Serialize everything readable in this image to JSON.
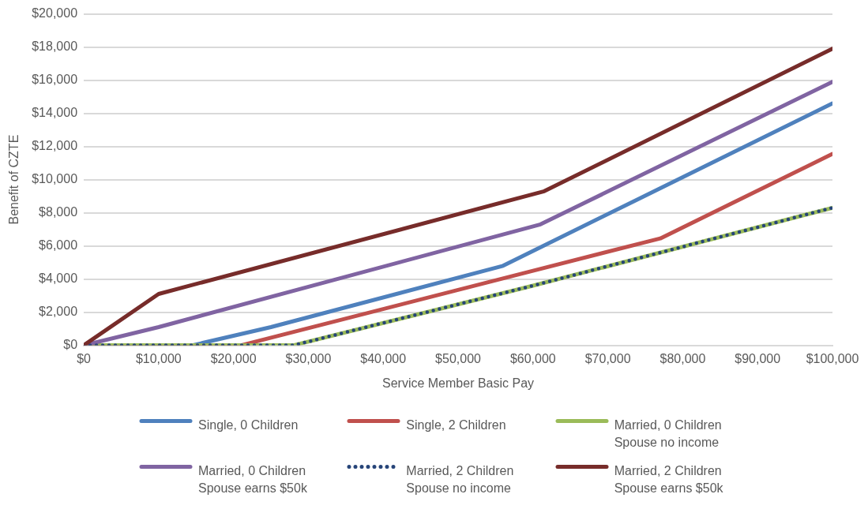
{
  "chart_data": {
    "type": "line",
    "xlabel": "Service Member Basic Pay",
    "ylabel": "Benefit of CZTE",
    "xlim": [
      0,
      100000
    ],
    "ylim": [
      0,
      20000
    ],
    "xticks": [
      {
        "value": 0,
        "label": "$0"
      },
      {
        "value": 10000,
        "label": "$10,000"
      },
      {
        "value": 20000,
        "label": "$20,000"
      },
      {
        "value": 30000,
        "label": "$30,000"
      },
      {
        "value": 40000,
        "label": "$40,000"
      },
      {
        "value": 50000,
        "label": "$50,000"
      },
      {
        "value": 60000,
        "label": "$60,000"
      },
      {
        "value": 70000,
        "label": "$70,000"
      },
      {
        "value": 80000,
        "label": "$80,000"
      },
      {
        "value": 90000,
        "label": "$90,000"
      },
      {
        "value": 100000,
        "label": "$100,000"
      }
    ],
    "yticks": [
      {
        "value": 0,
        "label": "$0"
      },
      {
        "value": 2000,
        "label": "$2,000"
      },
      {
        "value": 4000,
        "label": "$4,000"
      },
      {
        "value": 6000,
        "label": "$6,000"
      },
      {
        "value": 8000,
        "label": "$8,000"
      },
      {
        "value": 10000,
        "label": "$10,000"
      },
      {
        "value": 12000,
        "label": "$12,000"
      },
      {
        "value": 14000,
        "label": "$14,000"
      },
      {
        "value": 16000,
        "label": "$16,000"
      },
      {
        "value": 18000,
        "label": "$18,000"
      },
      {
        "value": 20000,
        "label": "$20,000"
      }
    ],
    "grid": "y",
    "legend": "bottom",
    "marker": "none",
    "series": [
      {
        "name": "Single, 0 Children",
        "color": "#4f81bd",
        "x": [
          0,
          14500,
          25000,
          56000,
          100000
        ],
        "values": [
          0,
          0,
          1100,
          4800,
          14600
        ]
      },
      {
        "name": "Single, 2 Children",
        "color": "#c0504d",
        "x": [
          0,
          21000,
          60000,
          77000,
          100000
        ],
        "values": [
          0,
          0,
          4500,
          6450,
          11550
        ]
      },
      {
        "name": "Married, 0 Children Spouse no income",
        "color": "#9bbb59",
        "x": [
          0,
          28000,
          60000,
          100000
        ],
        "values": [
          0,
          0,
          3600,
          8300
        ]
      },
      {
        "name": "Married, 0 Children Spouse earns $50k",
        "color": "#8064a2",
        "x": [
          0,
          10000,
          61000,
          100000
        ],
        "values": [
          0,
          1100,
          7300,
          15900
        ]
      },
      {
        "name": "Married, 2 Children Spouse no income",
        "color": "#264478",
        "line_style": "dotted",
        "x": [
          0,
          28000,
          60000,
          100000
        ],
        "values": [
          0,
          0,
          3600,
          8300
        ]
      },
      {
        "name": "Married, 2 Children Spouse earns $50k",
        "color": "#772c2a",
        "x": [
          0,
          10000,
          61500,
          100000
        ],
        "values": [
          0,
          3100,
          9300,
          17900
        ]
      }
    ]
  }
}
